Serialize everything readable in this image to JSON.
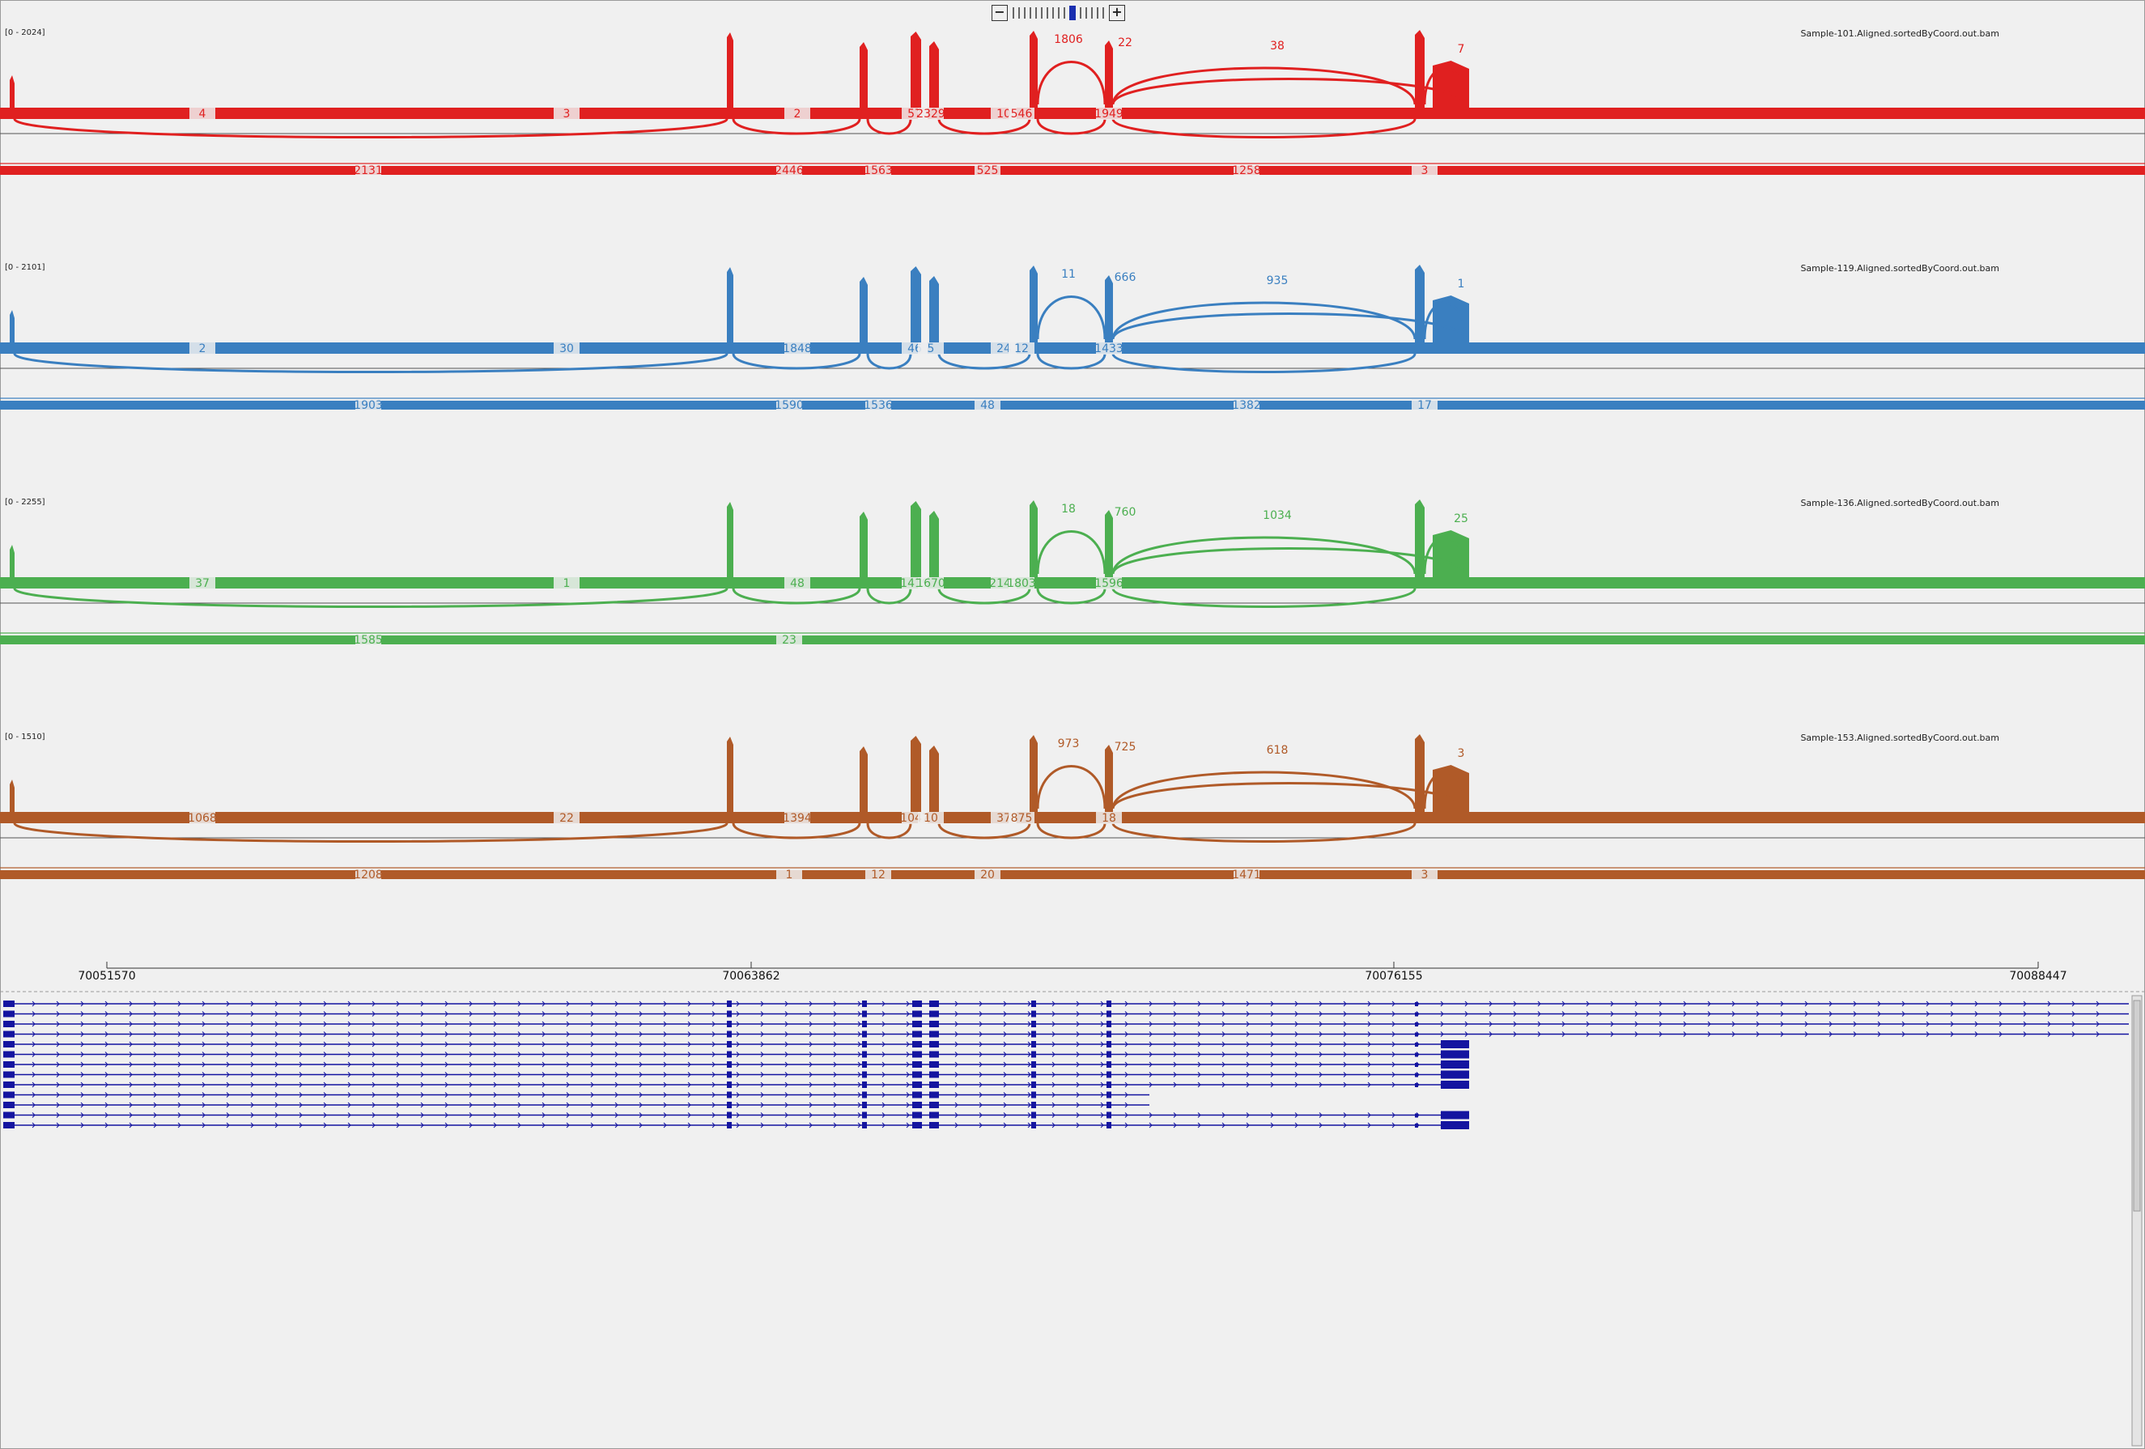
{
  "viewer": {
    "zoom_out_label": "−",
    "zoom_in_label": "+",
    "zoom_levels": 16,
    "zoom_selected": 10
  },
  "tracks": [
    {
      "name": "Sample-101.Aligned.sortedByCoord.out.bam",
      "range": "[0 - 2024]",
      "color": "#e02020",
      "junction_labels": [
        "1806",
        "22",
        "38",
        "7",
        "4",
        "3",
        "2",
        "57",
        "2329",
        "10",
        "546",
        "1949",
        "2131",
        "2446",
        "1563",
        "525",
        "1258",
        "3"
      ]
    },
    {
      "name": "Sample-119.Aligned.sortedByCoord.out.bam",
      "range": "[0 - 2101]",
      "color": "#3a7fc0",
      "junction_labels": [
        "11",
        "666",
        "935",
        "1",
        "2",
        "30",
        "1848",
        "46",
        "5",
        "24",
        "12",
        "1433",
        "1903",
        "1590",
        "1536",
        "48",
        "1382",
        "17"
      ]
    },
    {
      "name": "Sample-136.Aligned.sortedByCoord.out.bam",
      "range": "[0 - 2255]",
      "color": "#4caf50",
      "junction_labels": [
        "18",
        "760",
        "1034",
        "25",
        "37",
        "1",
        "48",
        "1419",
        "1670",
        "2142",
        "1803",
        "1596",
        "1585",
        "23"
      ]
    },
    {
      "name": "Sample-153.Aligned.sortedByCoord.out.bam",
      "range": "[0 - 1510]",
      "color": "#b05a28",
      "junction_labels": [
        "973",
        "725",
        "618",
        "3",
        "1068",
        "22",
        "1394",
        "1047",
        "10",
        "37",
        "875",
        "18",
        "1208",
        "1",
        "12",
        "20",
        "1471",
        "3"
      ]
    }
  ],
  "axis": {
    "ticks": [
      "70051570",
      "70063862",
      "70076155",
      "70088447"
    ]
  },
  "gene_track": {
    "color": "#1414a0",
    "transcript_count": 13
  }
}
